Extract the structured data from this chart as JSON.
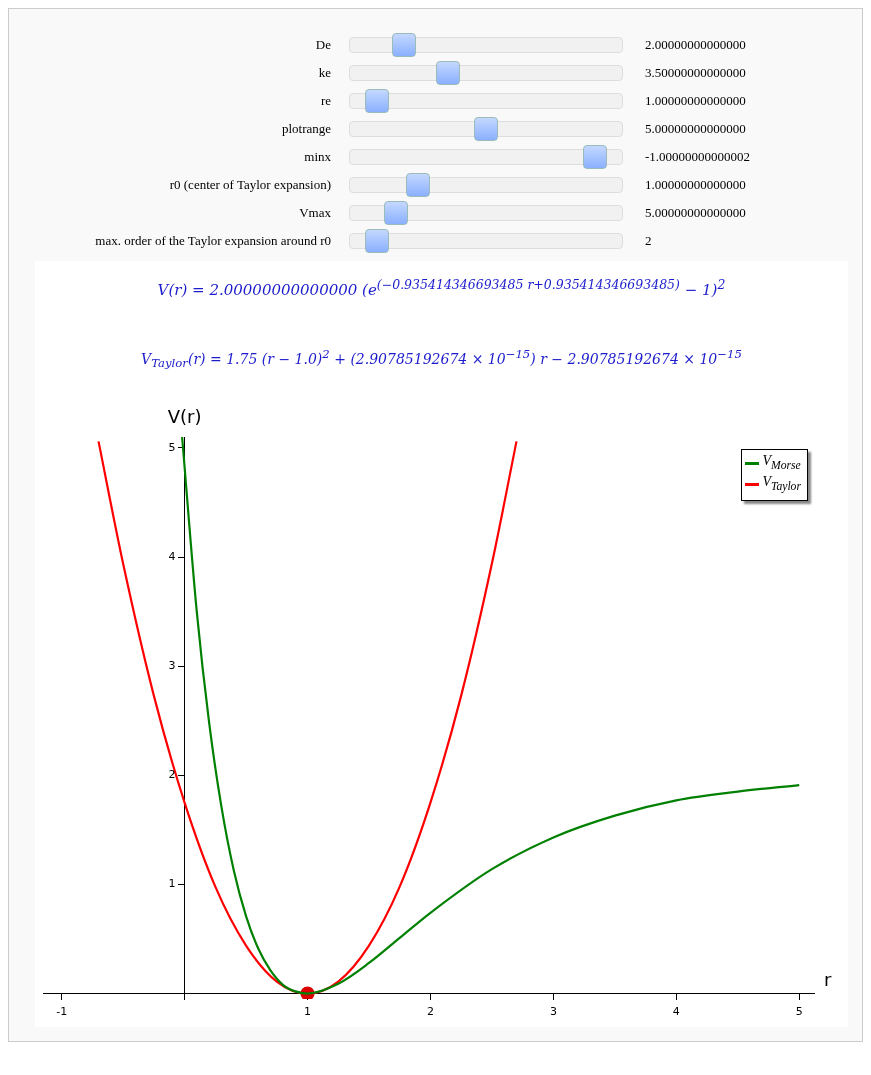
{
  "chart_data": [
    {
      "type": "other",
      "annotations": [
        "De",
        "2.00000000000000",
        "ke",
        "3.50000000000000",
        "re",
        "1.00000000000000",
        "plotrange",
        "5.00000000000000",
        "minx",
        "-1.00000000000002",
        "r0 (center of Taylor expansion)",
        "1.00000000000000",
        "Vmax",
        "5.00000000000000",
        "max. order of the Taylor expansion around r0",
        "2"
      ]
    },
    {
      "type": "line",
      "title": "V(r) = 2.00000000000000 (e$^{(−0.935414346693485 r+0.935414346693485)}$ − 1)$^{2}$",
      "subtitle": "V$_{Taylor}$(r) = 1.75 (r − 1.0)$^{2}$ + (2.90785192674 × 10$^{−15}$) r − 2.90785192674 × 10$^{−15}$",
      "xlabel": "r",
      "ylabel": "V(r)",
      "xlim": [
        -1.15,
        5.12
      ],
      "ylim": [
        -0.05,
        5.1
      ],
      "xticks": [
        -1,
        {
          "value": 0,
          "label": null
        },
        1,
        2,
        3,
        4,
        5
      ],
      "yticks": [
        {
          "value": 0,
          "label": null
        },
        1,
        2,
        3,
        4,
        5
      ],
      "grid": false,
      "legend": "top right",
      "series": [
        {
          "name": "V$_{Morse}$",
          "color": "#008000",
          "x": [
            -0.02,
            0.1,
            0.2,
            0.3,
            0.4,
            0.5,
            0.6,
            0.7,
            0.8,
            0.9,
            1,
            1.25,
            1.5,
            1.75,
            2,
            2.5,
            3,
            3.5,
            4,
            4.5,
            5
          ],
          "values": [
            5.1,
            3.49,
            2.48,
            1.71,
            1.13,
            0.71,
            0.41,
            0.21,
            0.08,
            0.02,
            0,
            0.09,
            0.28,
            0.51,
            0.74,
            1.14,
            1.43,
            1.63,
            1.77,
            1.85,
            1.91
          ]
        },
        {
          "name": "V$_{Taylor}$",
          "color": "#ff0000",
          "x": [
            -0.7,
            -0.5,
            -0.25,
            0,
            0.25,
            0.5,
            0.75,
            1,
            1.25,
            1.5,
            1.75,
            2,
            2.25,
            2.5,
            2.7
          ],
          "values": [
            5.06,
            3.94,
            2.73,
            1.75,
            0.98,
            0.44,
            0.11,
            0,
            0.11,
            0.44,
            0.98,
            1.75,
            2.73,
            3.94,
            5.06
          ]
        },
        {
          "type": "scatter",
          "color": "#dd0000",
          "marker": "circle",
          "x": [
            1
          ],
          "values": [
            0
          ]
        }
      ]
    }
  ]
}
